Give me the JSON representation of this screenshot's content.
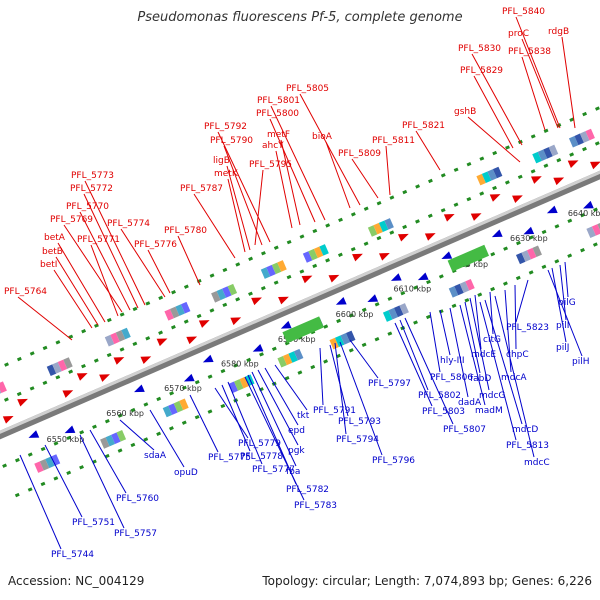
{
  "title": "Pseudomonas fluorescens Pf-5, complete genome",
  "footer": {
    "accession": "Accession: NC_004129",
    "summary": "Topology: circular; Length: 7,074,893 bp; Genes: 6,226"
  },
  "colors": {
    "forward": "#e00000",
    "reverse": "#0000cc",
    "backbone": "#909090",
    "ticks": "#228b22"
  },
  "ticks": [
    "6550 kbp",
    "6560 kbp",
    "6570 kbp",
    "6580 kbp",
    "6590 kbp",
    "6600 kbp",
    "6610 kbp",
    "6620 kbp",
    "6630 kbp",
    "6640 kbp"
  ],
  "top_labels": [
    "PFL_5840",
    "proC",
    "rdgB",
    "PFL_5838",
    "PFL_5830",
    "PFL_5829",
    "gshB",
    "PFL_5821",
    "PFL_5811",
    "PFL_5809",
    "PFL_5805",
    "bioA",
    "PFL_5801",
    "PFL_5800",
    "metF",
    "ahcY",
    "PFL_5792",
    "PFL_5790",
    "PFL_5795",
    "ligB",
    "metK",
    "PFL_5787",
    "PFL_5780",
    "PFL_5773",
    "PFL_5772",
    "PFL_5770",
    "PFL_5769",
    "PFL_5774",
    "PFL_5771",
    "PFL_5776",
    "betA",
    "betB",
    "betI",
    "PFL_5764"
  ],
  "bottom_labels": [
    "pilG",
    "pilI",
    "pilJ",
    "pilH",
    "PFL_5823",
    "chpC",
    "mdcA",
    "citG",
    "mdcE",
    "mdcG",
    "hly-III",
    "PFL_5806",
    "fabD",
    "madM",
    "dadA",
    "mdcD",
    "PFL_5813",
    "mdcC",
    "PFL_5802",
    "PFL_5803",
    "PFL_5807",
    "PFL_5797",
    "PFL_5791",
    "PFL_5793",
    "PFL_5794",
    "PFL_5796",
    "tkt",
    "epd",
    "pgk",
    "fba",
    "PFL_5782",
    "PFL_5783",
    "PFL_5775",
    "PFL_5779",
    "PFL_5778",
    "PFL_5777",
    "opuD",
    "sdaA",
    "PFL_5760",
    "PFL_5751",
    "PFL_5757",
    "PFL_5744"
  ]
}
